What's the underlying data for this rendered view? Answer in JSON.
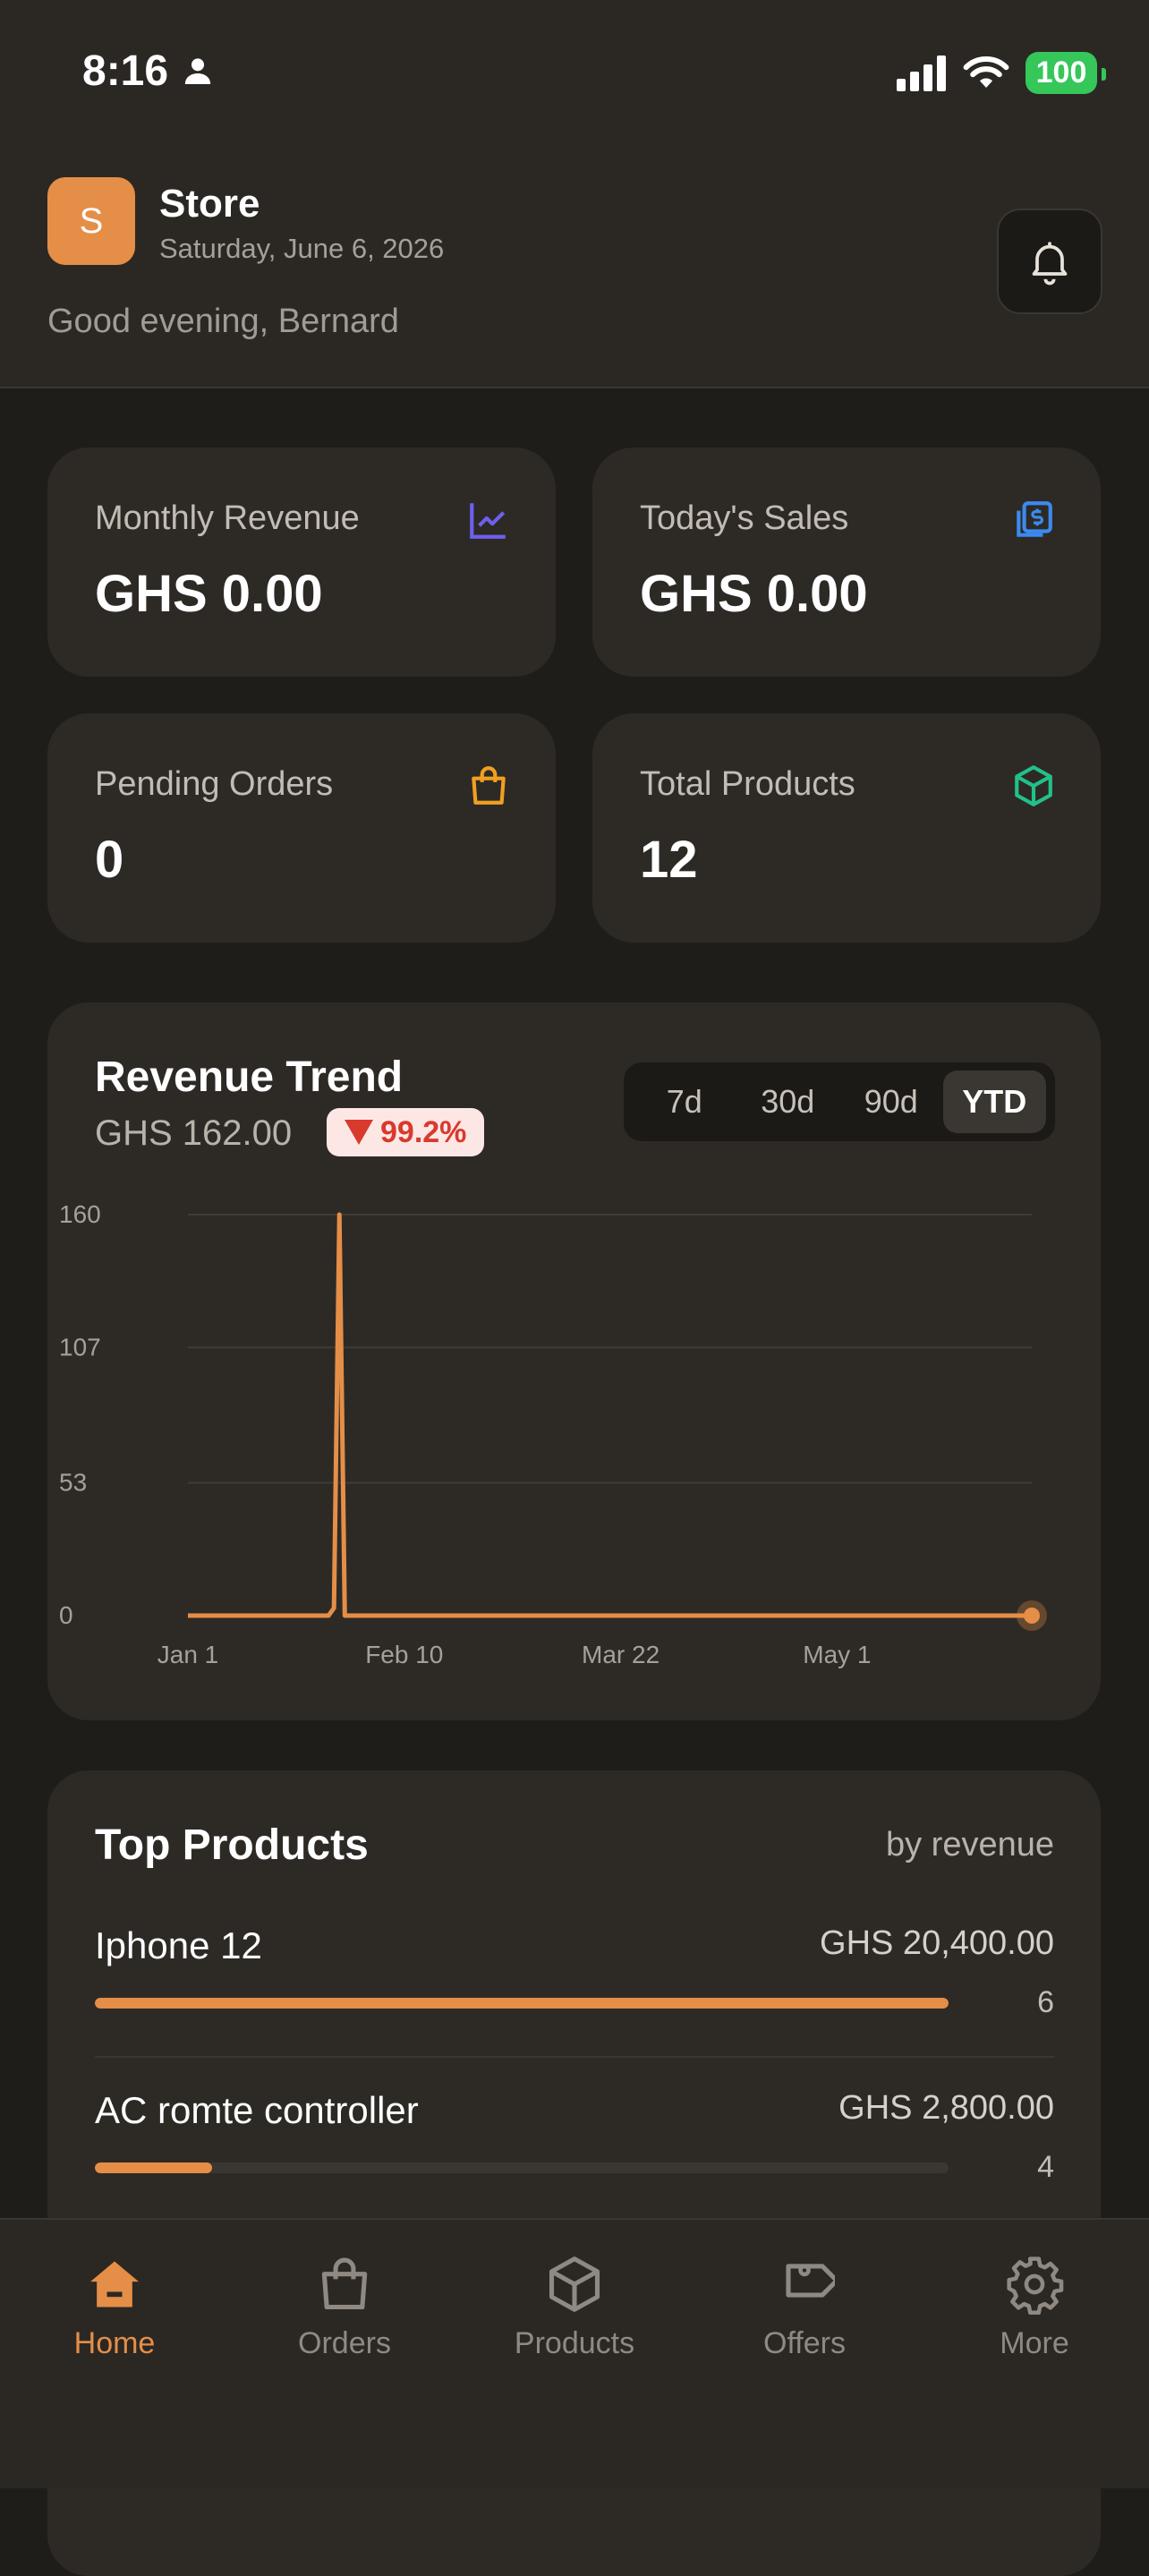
{
  "status_bar": {
    "time": "8:16",
    "battery": "100"
  },
  "header": {
    "logo_letter": "S",
    "store_name": "Store",
    "date": "Saturday, June 6, 2026",
    "greeting": "Good evening, Bernard"
  },
  "stats": [
    {
      "label": "Monthly Revenue",
      "value": "GHS 0.00",
      "icon": "trend-chart-icon",
      "color": "#6f5ff0"
    },
    {
      "label": "Today's Sales",
      "value": "GHS 0.00",
      "icon": "cash-icon",
      "color": "#3b8af0"
    },
    {
      "label": "Pending Orders",
      "value": "0",
      "icon": "shopping-bag-icon",
      "color": "#f0a020"
    },
    {
      "label": "Total Products",
      "value": "12",
      "icon": "box-icon",
      "color": "#22c08a"
    }
  ],
  "revenue_trend": {
    "title": "Revenue Trend",
    "total": "GHS 162.00",
    "change": "99.2%",
    "ranges": [
      "7d",
      "30d",
      "90d",
      "YTD"
    ],
    "selected_range": "YTD"
  },
  "chart_data": {
    "type": "line",
    "title": "Revenue Trend",
    "xlabel": "",
    "ylabel": "",
    "y_ticks": [
      "160",
      "107",
      "53",
      "0"
    ],
    "x_ticks": [
      "Jan 1",
      "Feb 10",
      "Mar 22",
      "May 1"
    ],
    "ylim": [
      0,
      160
    ],
    "x": [
      "Jan 1",
      "Jan 27",
      "Jan 28",
      "Jan 29",
      "Jan 30",
      "Jun 6"
    ],
    "series": [
      {
        "values": [
          0,
          0,
          3,
          160,
          0,
          0
        ]
      }
    ],
    "grid": true,
    "color": "#e58e47"
  },
  "top_products": {
    "title": "Top Products",
    "subtitle": "by revenue",
    "items": [
      {
        "name": "Iphone 12",
        "revenue": "GHS 20,400.00",
        "qty": "6",
        "share": 1.0
      },
      {
        "name": "AC romte controller",
        "revenue": "GHS 2,800.00",
        "qty": "4",
        "share": 0.137
      }
    ]
  },
  "tabs": [
    {
      "label": "Home",
      "icon": "home-icon",
      "active": true
    },
    {
      "label": "Orders",
      "icon": "shopping-bag-icon",
      "active": false
    },
    {
      "label": "Products",
      "icon": "box-icon",
      "active": false
    },
    {
      "label": "Offers",
      "icon": "tag-icon",
      "active": false
    },
    {
      "label": "More",
      "icon": "gear-icon",
      "active": false
    }
  ],
  "colors": {
    "accent": "#e58e47",
    "background": "#1f1d1a",
    "card": "#2d2a26"
  }
}
